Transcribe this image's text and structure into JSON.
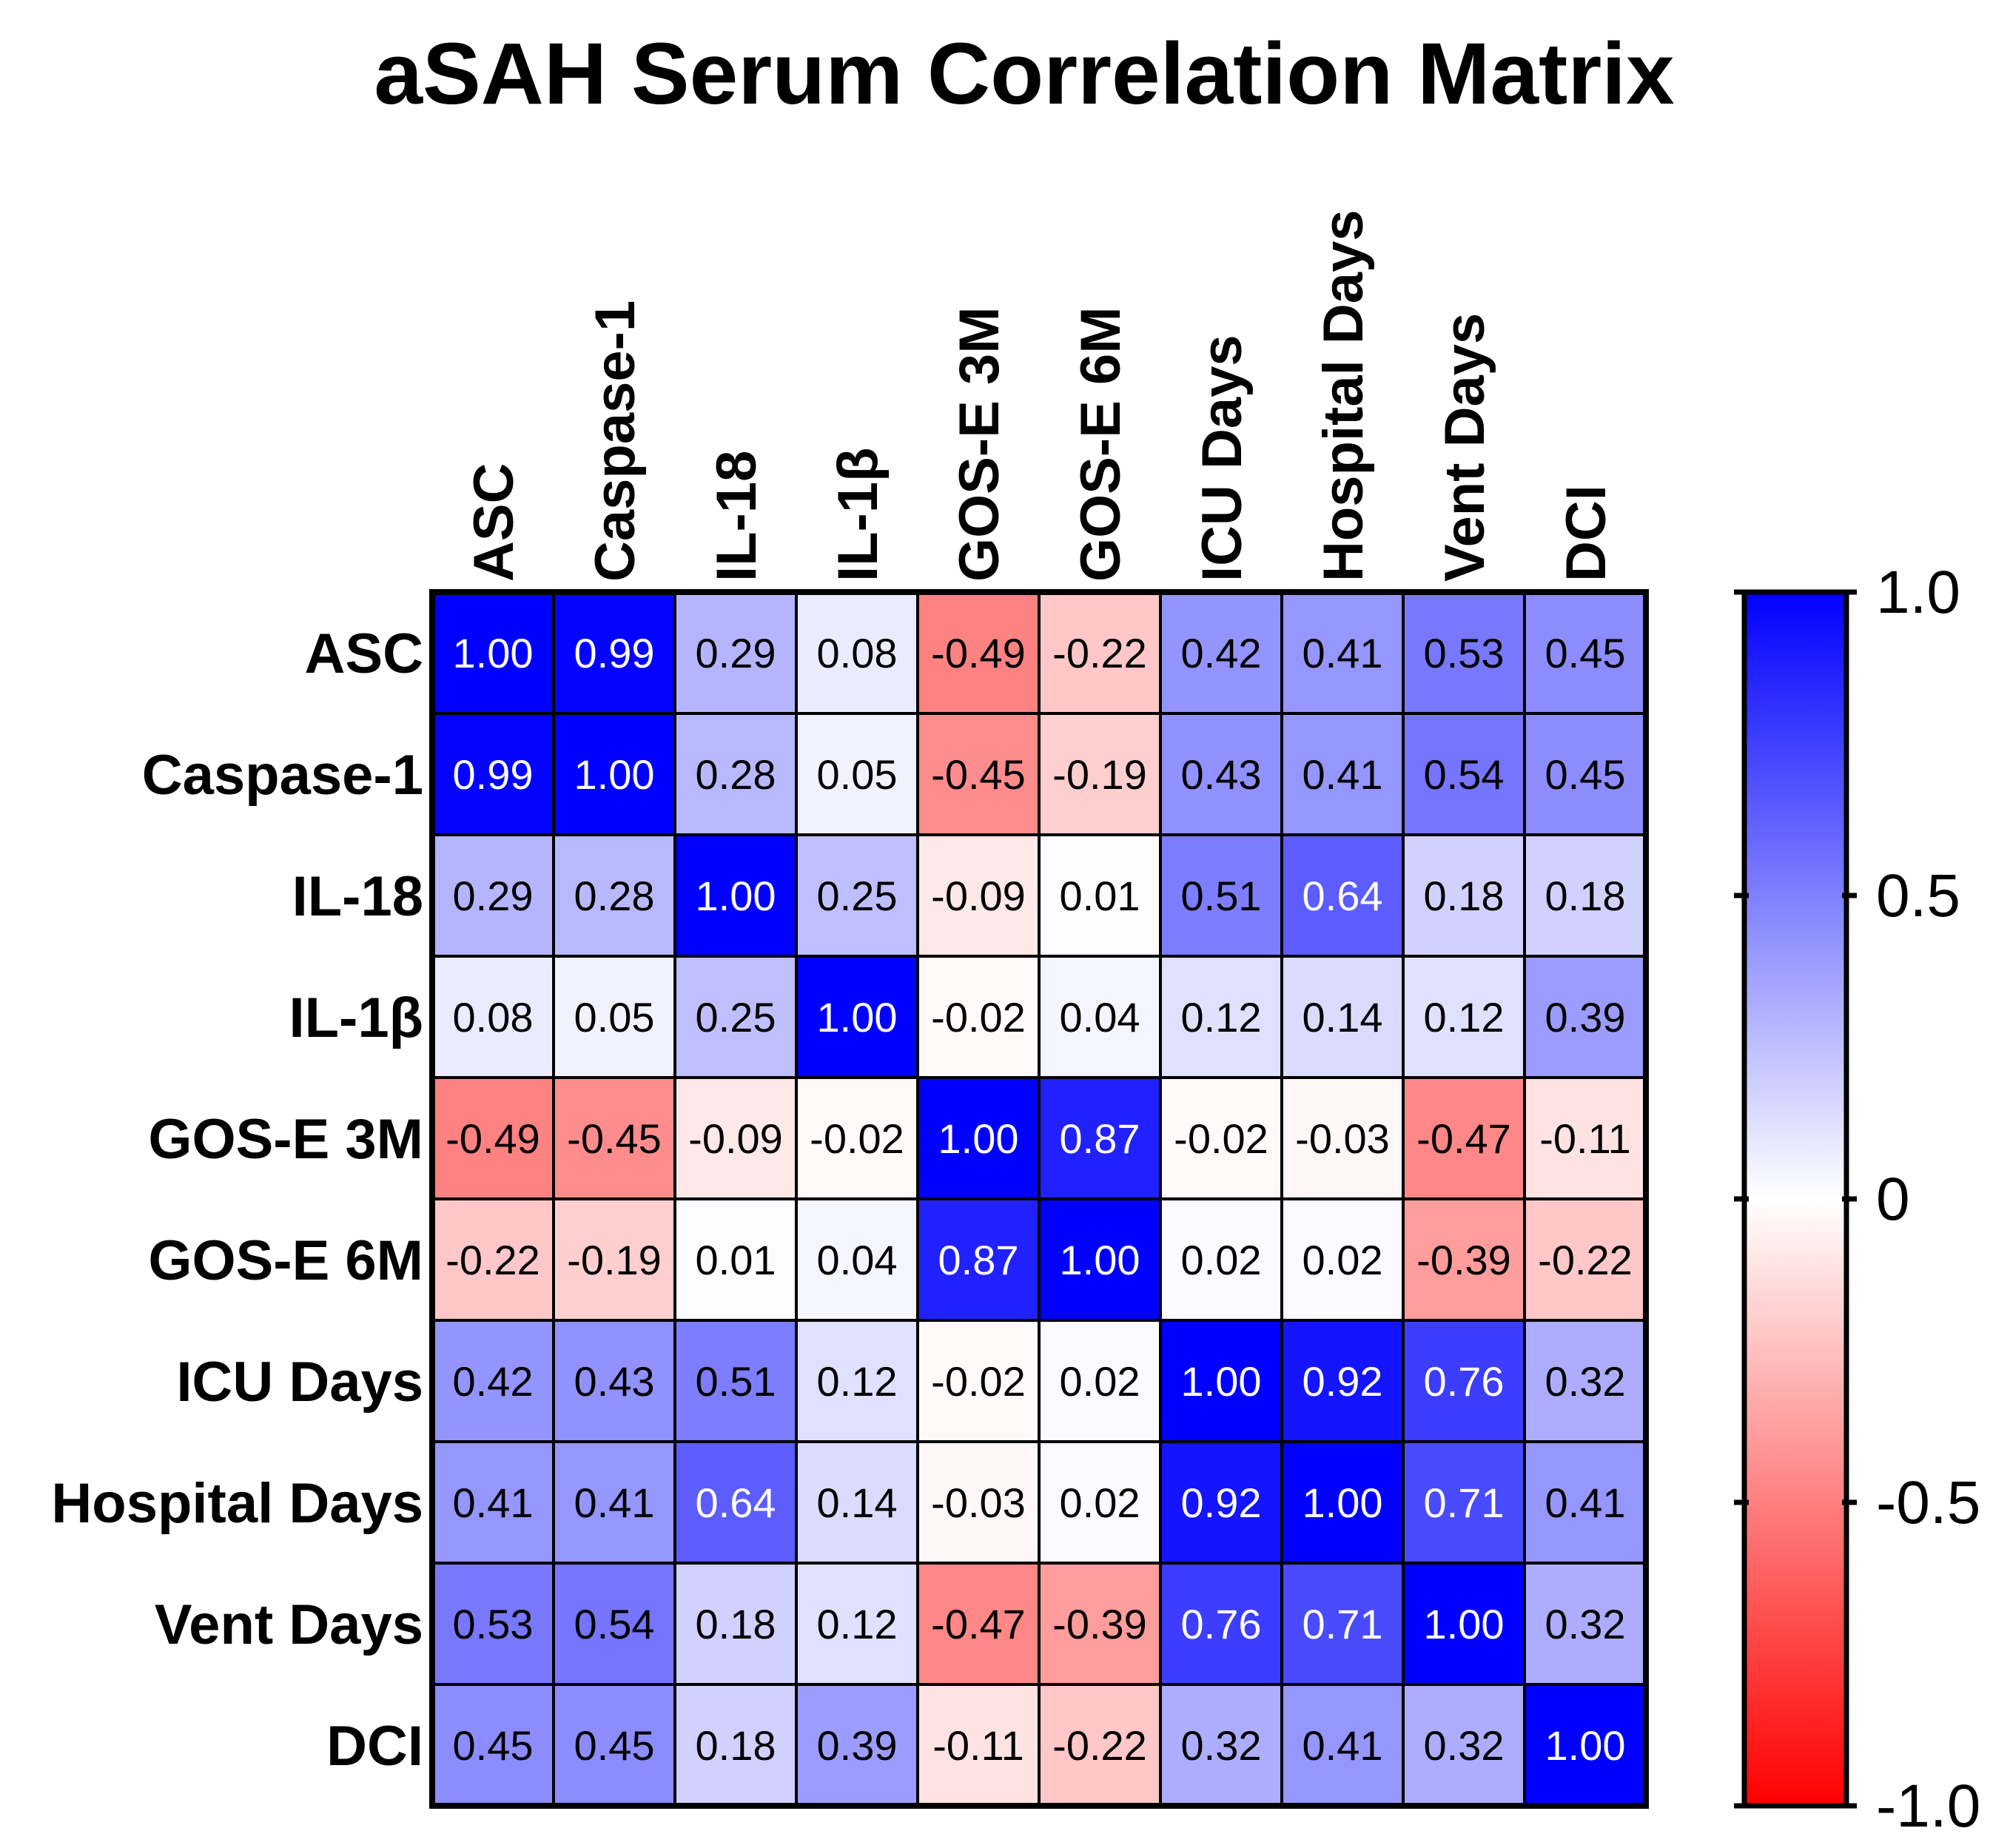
{
  "chart_data": {
    "type": "heatmap",
    "title": "aSAH Serum Correlation Matrix",
    "xlabel": "",
    "ylabel": "",
    "row_labels": [
      "ASC",
      "Caspase-1",
      "IL-18",
      "IL-1β",
      "GOS-E 3M",
      "GOS-E 6M",
      "ICU Days",
      "Hospital Days",
      "Vent Days",
      "DCI"
    ],
    "column_labels": [
      "ASC",
      "Caspase-1",
      "IL-18",
      "IL-1β",
      "GOS-E 3M",
      "GOS-E 6M",
      "ICU Days",
      "Hospital Days",
      "Vent Days",
      "DCI"
    ],
    "values": [
      [
        1.0,
        0.99,
        0.29,
        0.08,
        -0.49,
        -0.22,
        0.42,
        0.41,
        0.53,
        0.45
      ],
      [
        0.99,
        1.0,
        0.28,
        0.05,
        -0.45,
        -0.19,
        0.43,
        0.41,
        0.54,
        0.45
      ],
      [
        0.29,
        0.28,
        1.0,
        0.25,
        -0.09,
        0.01,
        0.51,
        0.64,
        0.18,
        0.18
      ],
      [
        0.08,
        0.05,
        0.25,
        1.0,
        -0.02,
        0.04,
        0.12,
        0.14,
        0.12,
        0.39
      ],
      [
        -0.49,
        -0.45,
        -0.09,
        -0.02,
        1.0,
        0.87,
        -0.02,
        -0.03,
        -0.47,
        -0.11
      ],
      [
        -0.22,
        -0.19,
        0.01,
        0.04,
        0.87,
        1.0,
        0.02,
        0.02,
        -0.39,
        -0.22
      ],
      [
        0.42,
        0.43,
        0.51,
        0.12,
        -0.02,
        0.02,
        1.0,
        0.92,
        0.76,
        0.32
      ],
      [
        0.41,
        0.41,
        0.64,
        0.14,
        -0.03,
        0.02,
        0.92,
        1.0,
        0.71,
        0.41
      ],
      [
        0.53,
        0.54,
        0.18,
        0.12,
        -0.47,
        -0.39,
        0.76,
        0.71,
        1.0,
        0.32
      ],
      [
        0.45,
        0.45,
        0.18,
        0.39,
        -0.11,
        -0.22,
        0.32,
        0.41,
        0.32,
        1.0
      ]
    ],
    "colorbar": {
      "range": [
        -1.0,
        1.0
      ],
      "ticks": [
        1.0,
        0.5,
        0,
        -0.5,
        -1.0
      ],
      "tick_labels": [
        "1.0",
        "0.5",
        "0",
        "-0.5",
        "-1.0"
      ],
      "color_high": "#0000ff",
      "color_mid": "#ffffff",
      "color_low": "#ff0000"
    },
    "legend": "right"
  }
}
